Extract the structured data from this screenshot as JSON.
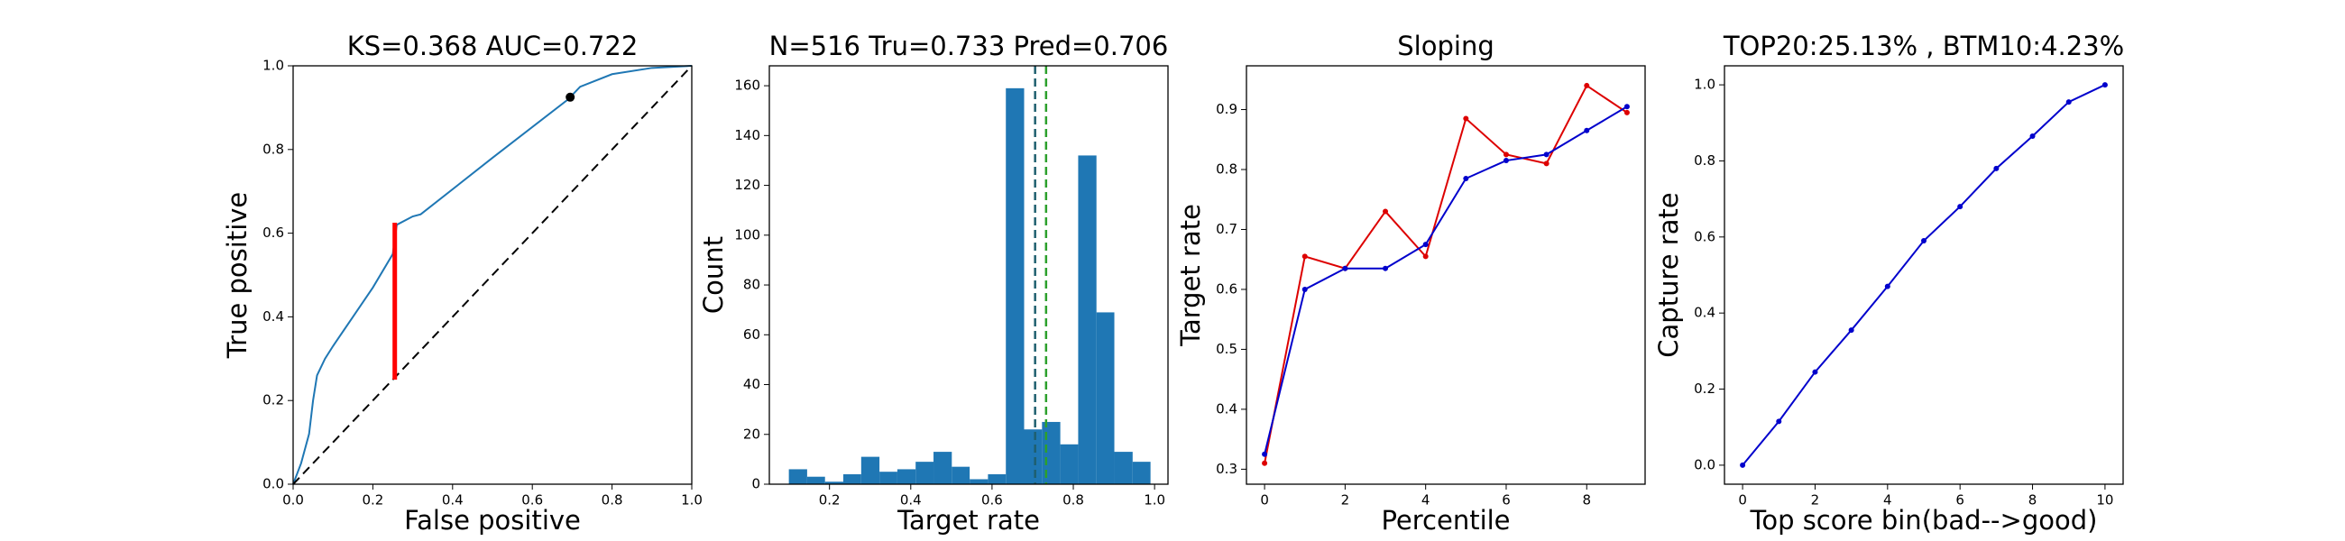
{
  "chart_data": [
    {
      "type": "line",
      "title": "KS=0.368 AUC=0.722",
      "xlabel": "False positive",
      "ylabel": "True positive",
      "xlim": [
        0,
        1
      ],
      "ylim": [
        0,
        1
      ],
      "xticks": [
        {
          "value": 0,
          "label": "0.0"
        },
        0.2,
        0.4,
        0.6,
        0.8,
        {
          "value": 1,
          "label": "1.0"
        }
      ],
      "yticks": [
        {
          "value": 0,
          "label": "0.0"
        },
        0.2,
        0.4,
        0.6,
        0.8,
        {
          "value": 1,
          "label": "1.0"
        }
      ],
      "series": [
        {
          "color": "#1f77b4",
          "x": [
            0,
            0.02,
            0.04,
            0.05,
            0.06,
            0.08,
            0.1,
            0.15,
            0.2,
            0.25,
            0.26,
            0.3,
            0.32,
            0.5,
            0.69,
            0.72,
            0.8,
            0.9,
            1
          ],
          "values": [
            0,
            0.05,
            0.12,
            0.2,
            0.26,
            0.3,
            0.33,
            0.4,
            0.47,
            0.55,
            0.62,
            0.64,
            0.645,
            0.78,
            0.92,
            0.95,
            0.98,
            0.995,
            1
          ]
        },
        {
          "color": "#000000",
          "linestyle": "dashed",
          "x": [
            0,
            1
          ],
          "values": [
            0,
            1
          ]
        },
        {
          "color": "#ff0000",
          "linewidth": 5,
          "x": [
            0.255,
            0.255
          ],
          "values": [
            0.25,
            0.625
          ]
        }
      ],
      "points": [
        {
          "x": 0.695,
          "y": 0.925,
          "color": "#000000"
        }
      ]
    },
    {
      "type": "histogram",
      "title": "N=516 Tru=0.733 Pred=0.706",
      "xlabel": "Target rate",
      "ylabel": "Count",
      "xlim": [
        0.052,
        1.033
      ],
      "ylim": [
        0,
        168
      ],
      "xticks": [
        0.2,
        0.4,
        0.6,
        0.8,
        {
          "value": 1,
          "label": "1.0"
        }
      ],
      "yticks": [
        0,
        20,
        40,
        60,
        80,
        100,
        120,
        140,
        160
      ],
      "color": "#1f77b4",
      "bins": [
        0.1,
        0.145,
        0.189,
        0.234,
        0.278,
        0.323,
        0.367,
        0.412,
        0.456,
        0.501,
        0.545,
        0.59,
        0.634,
        0.679,
        0.723,
        0.768,
        0.812,
        0.857,
        0.901,
        0.946,
        0.99
      ],
      "counts": [
        6,
        3,
        1,
        4,
        11,
        5,
        6,
        9,
        13,
        7,
        2,
        4,
        159,
        22,
        25,
        16,
        132,
        69,
        13,
        9
      ],
      "vlines": [
        {
          "x": 0.706,
          "color": "#1f5f6f"
        },
        {
          "x": 0.733,
          "color": "#2ca02c"
        }
      ]
    },
    {
      "type": "line",
      "title": "Sloping",
      "xlabel": "Percentile",
      "ylabel": "Target rate",
      "xlim": [
        -0.45,
        9.45
      ],
      "ylim": [
        0.275,
        0.973
      ],
      "xticks": [
        0,
        2,
        4,
        6,
        8
      ],
      "yticks": [
        0.3,
        0.4,
        0.5,
        0.6,
        0.7,
        0.8,
        0.9
      ],
      "x": [
        0,
        1,
        2,
        3,
        4,
        5,
        6,
        7,
        8,
        9
      ],
      "marker": true,
      "series": [
        {
          "color": "#dd0000",
          "values": [
            0.31,
            0.655,
            0.635,
            0.73,
            0.655,
            0.885,
            0.825,
            0.81,
            0.94,
            0.895
          ]
        },
        {
          "color": "#0000cc",
          "values": [
            0.325,
            0.6,
            0.635,
            0.635,
            0.675,
            0.785,
            0.815,
            0.825,
            0.865,
            0.905
          ]
        }
      ]
    },
    {
      "type": "line",
      "title": "TOP20:25.13% , BTM10:4.23%",
      "xlabel": "Top score bin(bad-->good)",
      "ylabel": "Capture rate",
      "xlim": [
        -0.5,
        10.5
      ],
      "ylim": [
        -0.05,
        1.05
      ],
      "xticks": [
        0,
        2,
        4,
        6,
        8,
        10
      ],
      "yticks": [
        {
          "value": 0,
          "label": "0.0"
        },
        0.2,
        0.4,
        0.6,
        0.8,
        {
          "value": 1,
          "label": "1.0"
        }
      ],
      "x": [
        0,
        1,
        2,
        3,
        4,
        5,
        6,
        7,
        8,
        9,
        10
      ],
      "marker": true,
      "series": [
        {
          "color": "#0000cc",
          "values": [
            0,
            0.115,
            0.245,
            0.355,
            0.47,
            0.59,
            0.68,
            0.78,
            0.865,
            0.955,
            1.0
          ]
        }
      ]
    }
  ]
}
